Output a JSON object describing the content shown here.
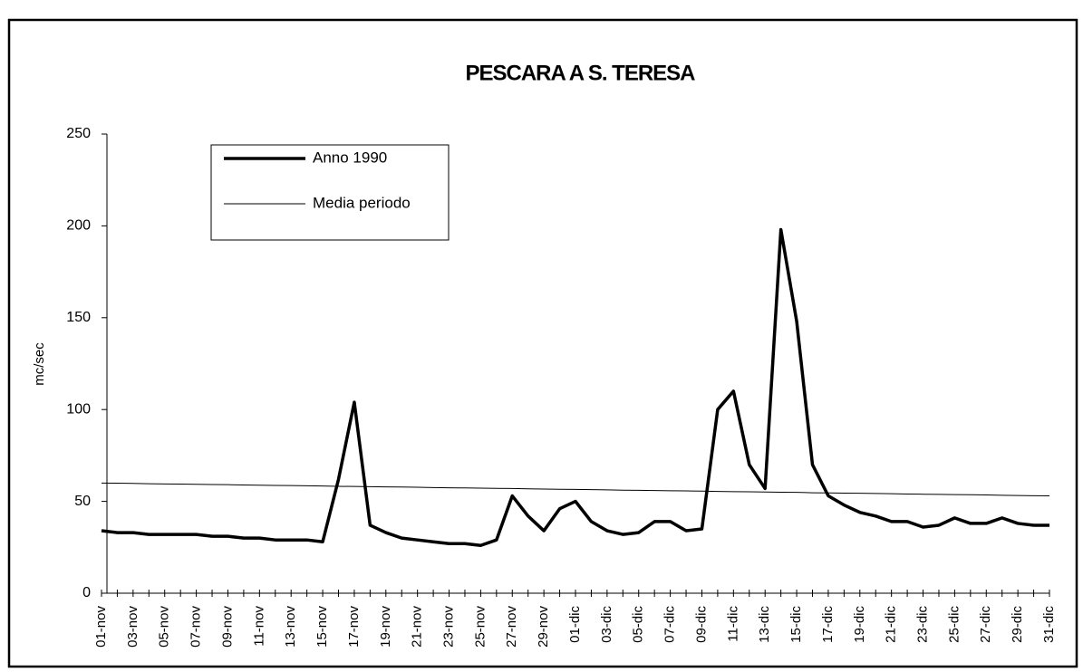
{
  "chart_data": {
    "type": "line",
    "title": "PESCARA A S. TERESA",
    "y_label": "mc/sec",
    "categories": [
      "01-nov",
      null,
      "03-nov",
      null,
      "05-nov",
      null,
      "07-nov",
      null,
      "09-nov",
      null,
      "11-nov",
      null,
      "13-nov",
      null,
      "15-nov",
      null,
      "17-nov",
      null,
      "19-nov",
      null,
      "21-nov",
      null,
      "23-nov",
      null,
      "25-nov",
      null,
      "27-nov",
      null,
      "29-nov",
      null,
      "01-dic",
      null,
      "03-dic",
      null,
      "05-dic",
      null,
      "07-dic",
      null,
      "09-dic",
      null,
      "11-dic",
      null,
      "13-dic",
      null,
      "15-dic",
      null,
      "17-dic",
      null,
      "19-dic",
      null,
      "21-dic",
      null,
      "23-dic",
      null,
      "25-dic",
      null,
      "27-dic",
      null,
      "29-dic",
      null,
      "31-dic"
    ],
    "series": [
      {
        "name": "Anno 1990",
        "color": "#000000",
        "values": [
          34,
          33,
          33,
          32,
          32,
          32,
          32,
          31,
          31,
          30,
          30,
          29,
          29,
          29,
          28,
          62,
          104,
          37,
          33,
          30,
          29,
          28,
          27,
          27,
          26,
          29,
          53,
          42,
          34,
          46,
          50,
          39,
          34,
          32,
          33,
          39,
          39,
          34,
          35,
          100,
          110,
          70,
          57,
          198,
          148,
          70,
          53,
          48,
          44,
          42,
          39,
          39,
          36,
          37,
          41,
          38,
          38,
          41,
          38,
          37,
          37
        ]
      },
      {
        "name": "Media periodo",
        "color": "#000000",
        "values": [
          60.0,
          59.9,
          59.8,
          59.6,
          59.5,
          59.4,
          59.3,
          59.2,
          59.1,
          58.9,
          58.8,
          58.7,
          58.6,
          58.5,
          58.4,
          58.2,
          58.1,
          58.0,
          57.9,
          57.8,
          57.7,
          57.5,
          57.4,
          57.3,
          57.2,
          57.1,
          57.0,
          56.8,
          56.7,
          56.6,
          56.5,
          56.4,
          56.3,
          56.1,
          56.0,
          55.9,
          55.8,
          55.7,
          55.6,
          55.4,
          55.3,
          55.2,
          55.1,
          55.0,
          54.9,
          54.7,
          54.6,
          54.5,
          54.4,
          54.3,
          54.2,
          54.0,
          53.9,
          53.8,
          53.7,
          53.6,
          53.5,
          53.3,
          53.2,
          53.1,
          53.0
        ]
      }
    ],
    "ylim": [
      0,
      250
    ],
    "yticks": [
      0,
      50,
      100,
      150,
      200,
      250
    ],
    "grid": false,
    "legend": "top-left"
  }
}
